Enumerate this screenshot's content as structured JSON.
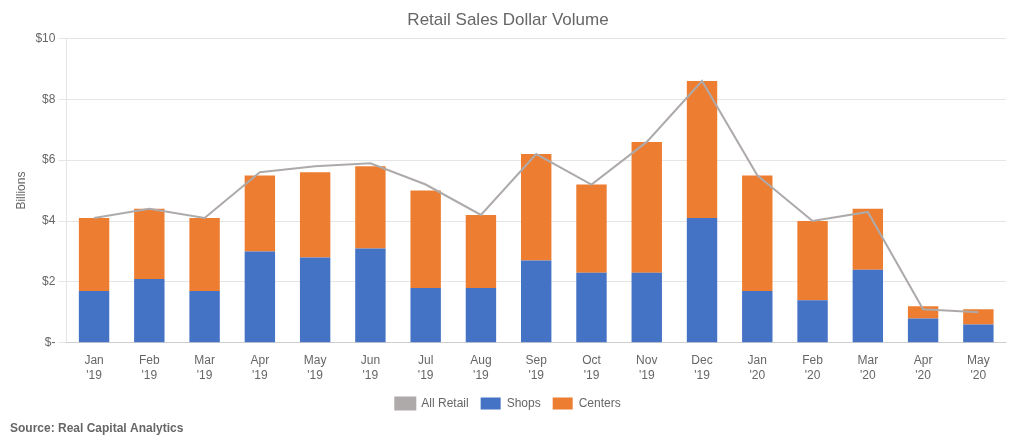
{
  "chart_data": {
    "type": "bar",
    "title": "Retail Sales Dollar Volume",
    "y_label": "Billions",
    "annotations": [
      "Source: Real Capital Analytics"
    ],
    "categories": [
      "Jan\n'19",
      "Feb\n'19",
      "Mar\n'19",
      "Apr\n'19",
      "May\n'19",
      "Jun\n'19",
      "Jul\n'19",
      "Aug\n'19",
      "Sep\n'19",
      "Oct\n'19",
      "Nov\n'19",
      "Dec\n'19",
      "Jan\n'20",
      "Feb\n'20",
      "Mar\n'20",
      "Apr\n'20",
      "May\n'20"
    ],
    "series": [
      {
        "name": "Shops",
        "type": "bar",
        "color": "#4472C4",
        "values": [
          1.7,
          2.1,
          1.7,
          3.0,
          2.8,
          3.1,
          1.8,
          1.8,
          2.7,
          2.3,
          2.3,
          4.1,
          1.7,
          1.4,
          2.4,
          0.8,
          0.6
        ]
      },
      {
        "name": "Centers",
        "type": "bar",
        "color": "#ED7D31",
        "values": [
          2.4,
          2.3,
          2.4,
          2.5,
          2.8,
          2.7,
          3.2,
          2.4,
          3.5,
          2.9,
          4.3,
          4.5,
          3.8,
          2.6,
          2.0,
          0.4,
          0.5
        ]
      },
      {
        "name": "All Retail",
        "type": "line",
        "color": "#AEAAAA",
        "line_style": "solid",
        "marker": "none",
        "values": [
          4.1,
          4.4,
          4.1,
          5.6,
          5.8,
          5.9,
          5.2,
          4.2,
          6.2,
          5.2,
          6.6,
          8.6,
          5.5,
          4.0,
          4.3,
          1.1,
          1.0
        ]
      }
    ],
    "stacked": true,
    "ylim": [
      0,
      10
    ],
    "yticks": [
      {
        "value": 0,
        "label": "$-"
      },
      {
        "value": 2,
        "label": "$2"
      },
      {
        "value": 4,
        "label": "$4"
      },
      {
        "value": 6,
        "label": "$6"
      },
      {
        "value": 8,
        "label": "$8"
      },
      {
        "value": 10,
        "label": "$10"
      }
    ],
    "grid": true,
    "legend": "bottom"
  }
}
